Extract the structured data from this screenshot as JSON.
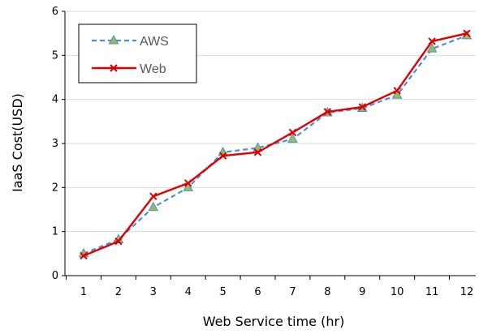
{
  "chart_data": {
    "type": "line",
    "title": "",
    "xlabel": "Web Service time (hr)",
    "ylabel": "IaaS Cost(USD)",
    "categories": [
      "1",
      "2",
      "3",
      "4",
      "5",
      "6",
      "7",
      "8",
      "9",
      "10",
      "11",
      "12"
    ],
    "ylim": [
      0,
      6
    ],
    "yticks": [
      "0",
      "1",
      "2",
      "3",
      "4",
      "5",
      "6"
    ],
    "grid": true,
    "legend_position": "top-left",
    "series": [
      {
        "name": "AWS",
        "values": [
          0.5,
          0.82,
          1.55,
          2.0,
          2.8,
          2.9,
          3.1,
          3.7,
          3.8,
          4.1,
          5.15,
          5.45
        ],
        "color": "#4A90D9",
        "line_style": "dashed",
        "marker": "triangle",
        "marker_color": "#9BBB59"
      },
      {
        "name": "Web",
        "values": [
          0.45,
          0.78,
          1.8,
          2.1,
          2.72,
          2.8,
          3.25,
          3.72,
          3.83,
          4.2,
          5.32,
          5.5
        ],
        "color": "#E00000",
        "line_style": "solid",
        "marker": "x",
        "marker_color": "#E00000"
      }
    ]
  }
}
